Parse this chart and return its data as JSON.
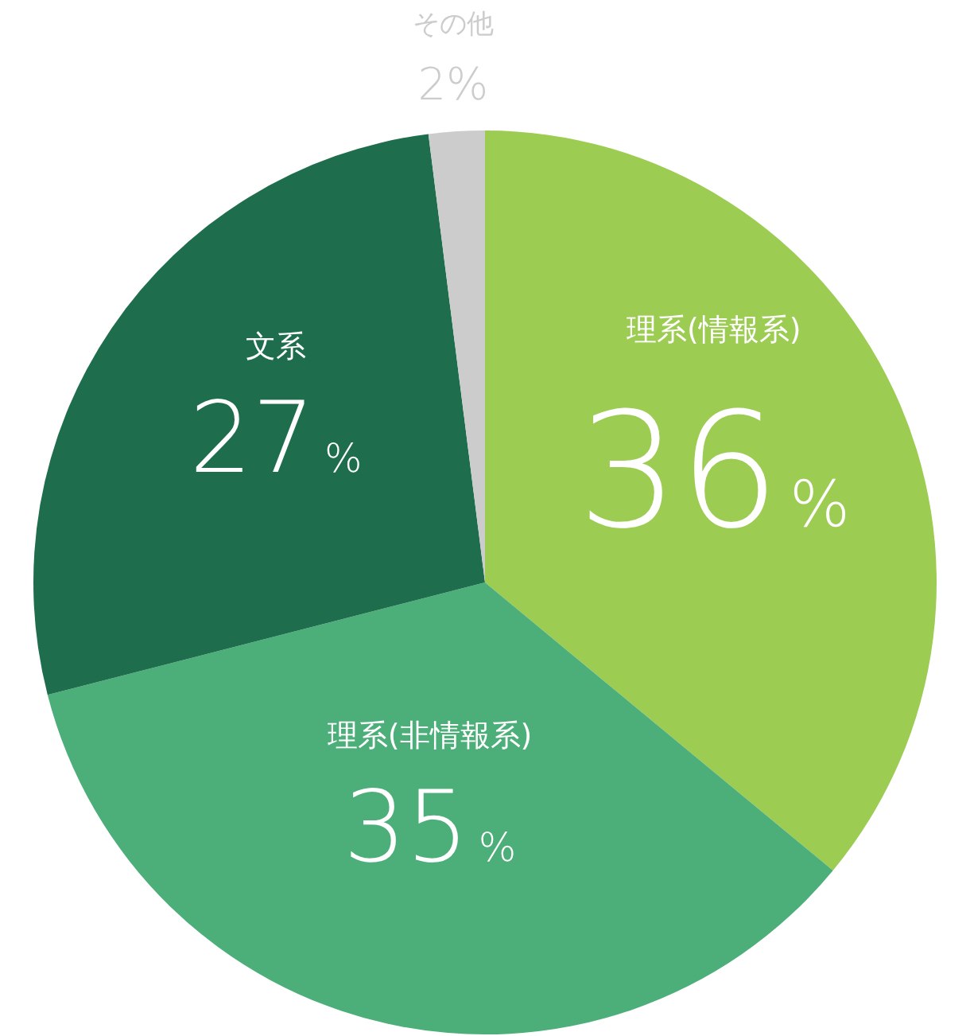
{
  "chart_data": {
    "type": "pie",
    "categories": [
      "理系(情報系)",
      "理系(非情報系)",
      "文系",
      "その他"
    ],
    "values": [
      36,
      35,
      27,
      2
    ],
    "colors": [
      "#9ccc52",
      "#4cae78",
      "#1e6e4e",
      "#cccccc"
    ],
    "value_labels": [
      "36%",
      "35%",
      "27%",
      "2%"
    ]
  }
}
